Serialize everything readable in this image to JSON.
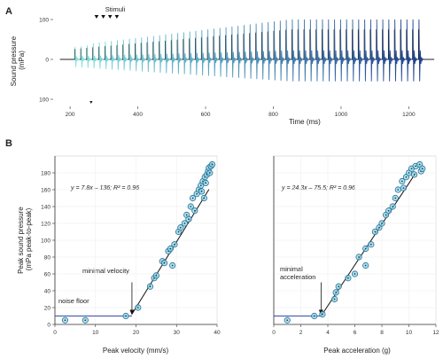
{
  "panels": [
    "A",
    "B"
  ],
  "chart_data": [
    {
      "type": "line",
      "panel": "A",
      "title": "",
      "xlabel": "Time (ms)",
      "ylabel": "Sound pressure\n(mPa)",
      "xticks": [
        200,
        400,
        600,
        800,
        1000,
        1200
      ],
      "xtick_labels": [
        "200",
        "400",
        "600",
        "800",
        "1000",
        "1200"
      ],
      "yticks": [
        100,
        0,
        100
      ],
      "ytick_labels": [
        "100",
        "0",
        "100"
      ],
      "xlim": [
        150,
        1280
      ],
      "ylim": [
        -100,
        100
      ],
      "annotation": "Stimuli",
      "stimuli_times": [
        278,
        298,
        318,
        338
      ],
      "stimulus_markers": [
        262
      ],
      "pulse_onset_ms": 215,
      "pulse_end_ms": 1230,
      "pulse_count": 58,
      "peak_amplitude_mPa": 100,
      "color_ramp": [
        "#7fe3df",
        "#1e3f8f"
      ],
      "grid": false
    },
    {
      "type": "scatter",
      "panel": "B-left",
      "xlabel": "Peak velocity (mm/s)",
      "ylabel": "Peak sound pressure\n(mPa peak-to-peak)",
      "xlim": [
        0,
        40
      ],
      "ylim": [
        0,
        200
      ],
      "xticks": [
        0,
        10,
        20,
        30,
        40
      ],
      "yticks": [
        0,
        20,
        40,
        60,
        80,
        100,
        120,
        140,
        160,
        180
      ],
      "equation": "y = 7.8x – 136; R² = 0.96",
      "annotations": [
        "minimal velocity",
        "noise floor"
      ],
      "fit_line": {
        "slope": 7.8,
        "intercept": -136,
        "x_range": [
          19,
          38
        ]
      },
      "noise_floor": {
        "y": 10,
        "x_range": [
          0,
          19
        ]
      },
      "threshold_x": 19,
      "points": [
        {
          "x": 2.5,
          "y": 5
        },
        {
          "x": 7.5,
          "y": 5
        },
        {
          "x": 17.5,
          "y": 10
        },
        {
          "x": 20.5,
          "y": 20
        },
        {
          "x": 23.5,
          "y": 45
        },
        {
          "x": 24.5,
          "y": 55
        },
        {
          "x": 25.0,
          "y": 58
        },
        {
          "x": 26.5,
          "y": 75
        },
        {
          "x": 27.0,
          "y": 73
        },
        {
          "x": 28.0,
          "y": 87
        },
        {
          "x": 28.5,
          "y": 90
        },
        {
          "x": 29.0,
          "y": 70
        },
        {
          "x": 29.5,
          "y": 95
        },
        {
          "x": 30.5,
          "y": 110
        },
        {
          "x": 31.0,
          "y": 115
        },
        {
          "x": 32.0,
          "y": 120
        },
        {
          "x": 32.5,
          "y": 130
        },
        {
          "x": 33.0,
          "y": 125
        },
        {
          "x": 33.5,
          "y": 140
        },
        {
          "x": 34.0,
          "y": 150
        },
        {
          "x": 34.5,
          "y": 135
        },
        {
          "x": 35.0,
          "y": 155
        },
        {
          "x": 35.5,
          "y": 160
        },
        {
          "x": 36.0,
          "y": 165
        },
        {
          "x": 36.5,
          "y": 170
        },
        {
          "x": 37.0,
          "y": 175
        },
        {
          "x": 37.5,
          "y": 178
        },
        {
          "x": 37.8,
          "y": 182
        },
        {
          "x": 38.0,
          "y": 186
        },
        {
          "x": 38.5,
          "y": 188
        },
        {
          "x": 38.8,
          "y": 190
        },
        {
          "x": 38.2,
          "y": 180
        },
        {
          "x": 37.2,
          "y": 168
        },
        {
          "x": 36.2,
          "y": 158
        },
        {
          "x": 36.8,
          "y": 150
        }
      ]
    },
    {
      "type": "scatter",
      "panel": "B-right",
      "xlabel": "Peak acceleration (g)",
      "ylabel": "",
      "xlim": [
        0,
        12
      ],
      "ylim": [
        0,
        200
      ],
      "xticks": [
        0,
        2,
        4,
        6,
        8,
        10,
        12
      ],
      "equation": "y = 24.3x – 75.5; R² = 0.96",
      "annotations": [
        "minimal\nacceleration"
      ],
      "fit_line": {
        "slope": 24.3,
        "intercept": -75.5,
        "x_range": [
          3.5,
          10.5
        ]
      },
      "noise_floor": {
        "y": 10,
        "x_range": [
          0,
          3.5
        ]
      },
      "threshold_x": 3.5,
      "points": [
        {
          "x": 1.0,
          "y": 5
        },
        {
          "x": 3.0,
          "y": 10
        },
        {
          "x": 3.6,
          "y": 12
        },
        {
          "x": 4.5,
          "y": 30
        },
        {
          "x": 4.6,
          "y": 38
        },
        {
          "x": 4.8,
          "y": 45
        },
        {
          "x": 5.5,
          "y": 55
        },
        {
          "x": 6.0,
          "y": 60
        },
        {
          "x": 6.3,
          "y": 80
        },
        {
          "x": 6.8,
          "y": 70
        },
        {
          "x": 6.8,
          "y": 90
        },
        {
          "x": 7.2,
          "y": 95
        },
        {
          "x": 7.5,
          "y": 110
        },
        {
          "x": 7.8,
          "y": 115
        },
        {
          "x": 8.0,
          "y": 120
        },
        {
          "x": 8.3,
          "y": 130
        },
        {
          "x": 8.5,
          "y": 135
        },
        {
          "x": 8.8,
          "y": 140
        },
        {
          "x": 9.0,
          "y": 150
        },
        {
          "x": 9.2,
          "y": 160
        },
        {
          "x": 9.5,
          "y": 170
        },
        {
          "x": 9.8,
          "y": 175
        },
        {
          "x": 10.0,
          "y": 180
        },
        {
          "x": 10.2,
          "y": 185
        },
        {
          "x": 10.5,
          "y": 188
        },
        {
          "x": 10.8,
          "y": 190
        },
        {
          "x": 10.4,
          "y": 178
        },
        {
          "x": 10.9,
          "y": 182
        },
        {
          "x": 11.0,
          "y": 185
        },
        {
          "x": 9.6,
          "y": 162
        }
      ]
    }
  ],
  "colors": {
    "axis": "#333333",
    "fit_line": "#111111",
    "noise_floor": "#3a4aa8",
    "point_fill": "#8ed9e6",
    "point_stroke": "#2f6d96",
    "trace_start": "#7fe3df",
    "trace_end": "#1e3f8f",
    "baseline": "#222222"
  }
}
